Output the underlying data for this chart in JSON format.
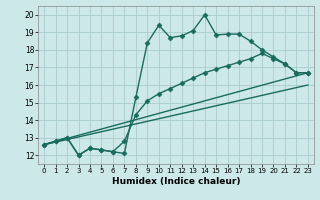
{
  "title": "",
  "xlabel": "Humidex (Indice chaleur)",
  "ylabel": "",
  "background_color": "#cce8e8",
  "line_color": "#1a6b5e",
  "grid_color": "#aacccc",
  "xlim": [
    -0.5,
    23.5
  ],
  "ylim": [
    11.5,
    20.5
  ],
  "xticks": [
    0,
    1,
    2,
    3,
    4,
    5,
    6,
    7,
    8,
    9,
    10,
    11,
    12,
    13,
    14,
    15,
    16,
    17,
    18,
    19,
    20,
    21,
    22,
    23
  ],
  "yticks": [
    12,
    13,
    14,
    15,
    16,
    17,
    18,
    19,
    20
  ],
  "series": [
    {
      "x": [
        0,
        1,
        2,
        3,
        4,
        5,
        6,
        7,
        8,
        9,
        10,
        11,
        12,
        13,
        14,
        15,
        16,
        17,
        18,
        19,
        20,
        21,
        22,
        23
      ],
      "y": [
        12.6,
        12.8,
        13.0,
        12.0,
        12.4,
        12.3,
        12.2,
        12.1,
        15.3,
        18.4,
        19.4,
        18.7,
        18.8,
        19.1,
        20.0,
        18.85,
        18.9,
        18.9,
        18.5,
        18.0,
        17.6,
        17.2,
        16.7,
        16.7
      ],
      "marker": "D",
      "markersize": 2.5,
      "linewidth": 1.0
    },
    {
      "x": [
        0,
        1,
        2,
        3,
        4,
        5,
        6,
        7,
        8,
        9,
        10,
        11,
        12,
        13,
        14,
        15,
        16,
        17,
        18,
        19,
        20,
        21,
        22,
        23
      ],
      "y": [
        12.6,
        12.8,
        13.0,
        12.0,
        12.4,
        12.3,
        12.2,
        12.8,
        14.3,
        15.1,
        15.5,
        15.8,
        16.1,
        16.4,
        16.7,
        16.9,
        17.1,
        17.3,
        17.5,
        17.8,
        17.5,
        17.2,
        16.7,
        16.7
      ],
      "marker": "D",
      "markersize": 2.5,
      "linewidth": 1.0
    },
    {
      "x": [
        0,
        23
      ],
      "y": [
        12.6,
        16.7
      ],
      "marker": null,
      "markersize": 0,
      "linewidth": 1.0
    },
    {
      "x": [
        0,
        23
      ],
      "y": [
        12.6,
        16.0
      ],
      "marker": null,
      "markersize": 0,
      "linewidth": 1.0
    }
  ]
}
